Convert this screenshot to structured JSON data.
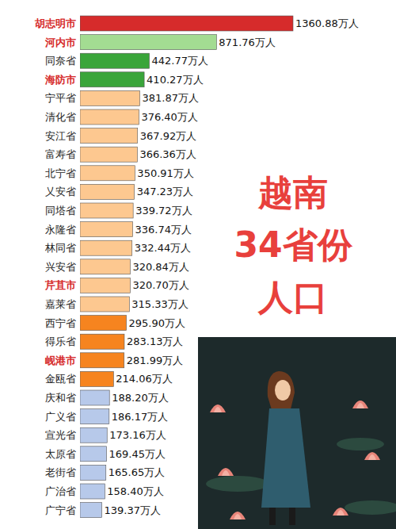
{
  "chart_data": {
    "type": "bar",
    "orientation": "horizontal",
    "title": "越南 34省份 人口",
    "categories": [
      "胡志明市",
      "河内市",
      "同奈省",
      "海防市",
      "宁平省",
      "清化省",
      "安江省",
      "富寿省",
      "北宁省",
      "乂安省",
      "同塔省",
      "永隆省",
      "林同省",
      "兴安省",
      "芹苴市",
      "嘉莱省",
      "西宁省",
      "得乐省",
      "岘港市",
      "金瓯省",
      "庆和省",
      "广义省",
      "宣光省",
      "太原省",
      "老街省",
      "广治省",
      "广宁省"
    ],
    "values": [
      1360.88,
      871.76,
      442.77,
      410.27,
      381.87,
      376.4,
      367.92,
      366.36,
      350.91,
      347.23,
      339.72,
      336.74,
      332.44,
      320.84,
      320.7,
      315.33,
      295.9,
      283.13,
      281.99,
      214.06,
      188.2,
      186.17,
      173.16,
      169.45,
      165.65,
      158.4,
      139.37
    ],
    "value_labels": [
      "1360.88万人",
      "871.76万人",
      "442.77万人",
      "410.27万人",
      "381.87万人",
      "376.40万人",
      "367.92万人",
      "366.36万人",
      "350.91万人",
      "347.23万人",
      "339.72万人",
      "336.74万人",
      "332.44万人",
      "320.84万人",
      "320.70万人",
      "315.33万人",
      "295.90万人",
      "283.13万人",
      "281.99万人",
      "214.06万人",
      "188.20万人",
      "186.17万人",
      "173.16万人",
      "169.45万人",
      "165.65万人",
      "158.40万人",
      "139.37万人"
    ],
    "colors": [
      "#d62b2b",
      "#a3dc92",
      "#3aa53a",
      "#3aa53a",
      "#fdc890",
      "#fdc890",
      "#fdc890",
      "#fdc890",
      "#fdc890",
      "#fdc890",
      "#fdc890",
      "#fdc890",
      "#fdc890",
      "#fdc890",
      "#fdc890",
      "#fdc890",
      "#f6841f",
      "#f6841f",
      "#f6841f",
      "#f6841f",
      "#b7c9ea",
      "#b7c9ea",
      "#b7c9ea",
      "#b7c9ea",
      "#b7c9ea",
      "#b7c9ea",
      "#b7c9ea"
    ],
    "xlim": [
      0,
      1360.88
    ],
    "data_labels": true,
    "tick_labels": "y",
    "grid": false
  }
}
